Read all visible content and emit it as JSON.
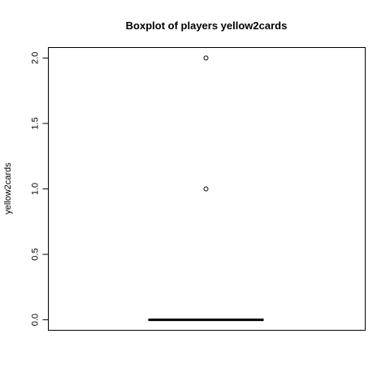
{
  "chart_data": {
    "type": "boxplot",
    "title": "Boxplot of players yellow2cards",
    "xlabel": "",
    "ylabel": "yellow2cards",
    "ylim": [
      -0.08,
      2.08
    ],
    "yticks": [
      0.0,
      0.5,
      1.0,
      1.5,
      2.0
    ],
    "ytick_labels": [
      "0.0",
      "0.5",
      "1.0",
      "1.5",
      "2.0"
    ],
    "boxes": [
      {
        "min": 0,
        "q1": 0,
        "median": 0,
        "q3": 0,
        "max": 0,
        "outliers": [
          1,
          2
        ]
      }
    ],
    "grid": false,
    "legend": "none"
  }
}
